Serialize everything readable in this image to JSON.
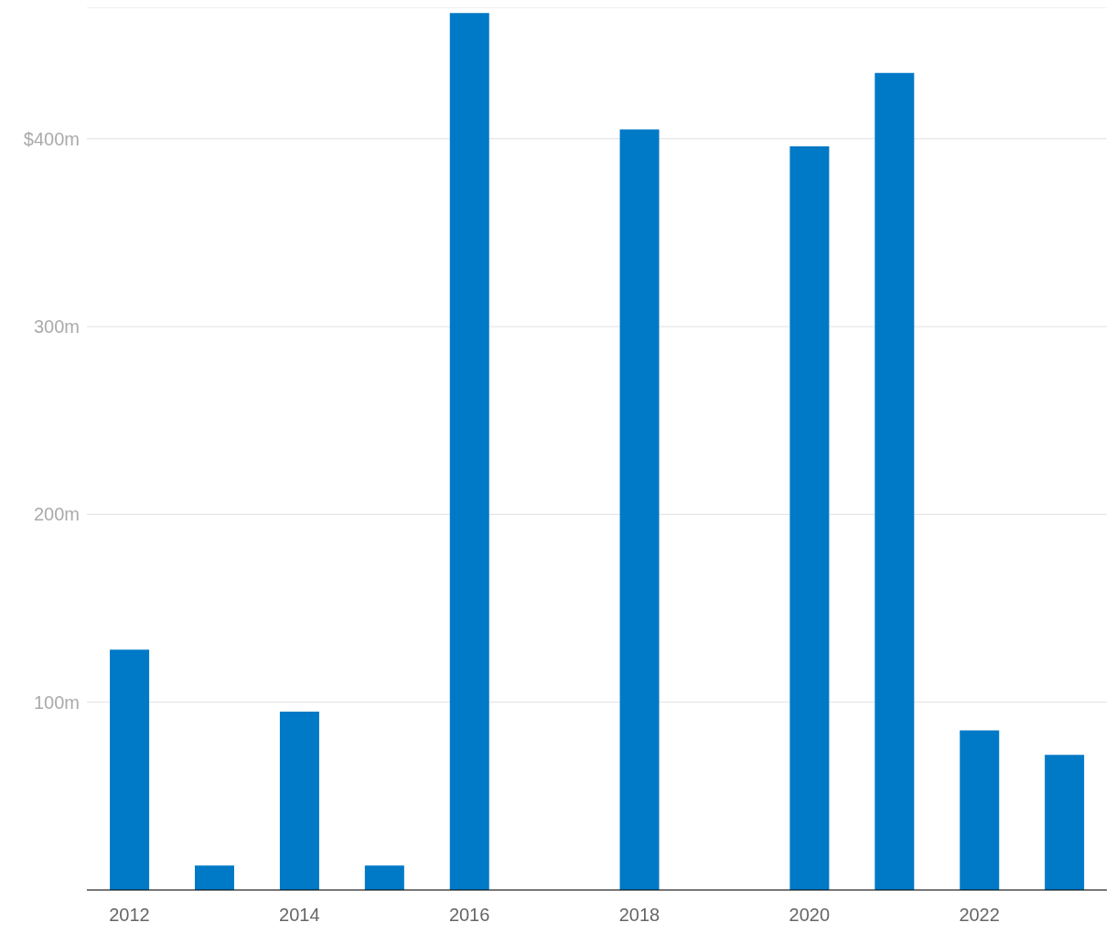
{
  "chart_data": {
    "type": "bar",
    "categories": [
      "2012",
      null,
      "2014",
      null,
      "2016",
      null,
      "2018",
      null,
      "2020",
      null,
      "2022",
      null
    ],
    "values": [
      128,
      13,
      95,
      13,
      467,
      null,
      405,
      null,
      396,
      435,
      85,
      72
    ],
    "color": "#0079c6",
    "ylim": [
      0,
      470
    ],
    "yticks": [
      {
        "value": 100,
        "label": "100m"
      },
      {
        "value": 200,
        "label": "200m"
      },
      {
        "value": 300,
        "label": "300m"
      },
      {
        "value": 400,
        "label": "$400m"
      }
    ],
    "grid": "y"
  }
}
